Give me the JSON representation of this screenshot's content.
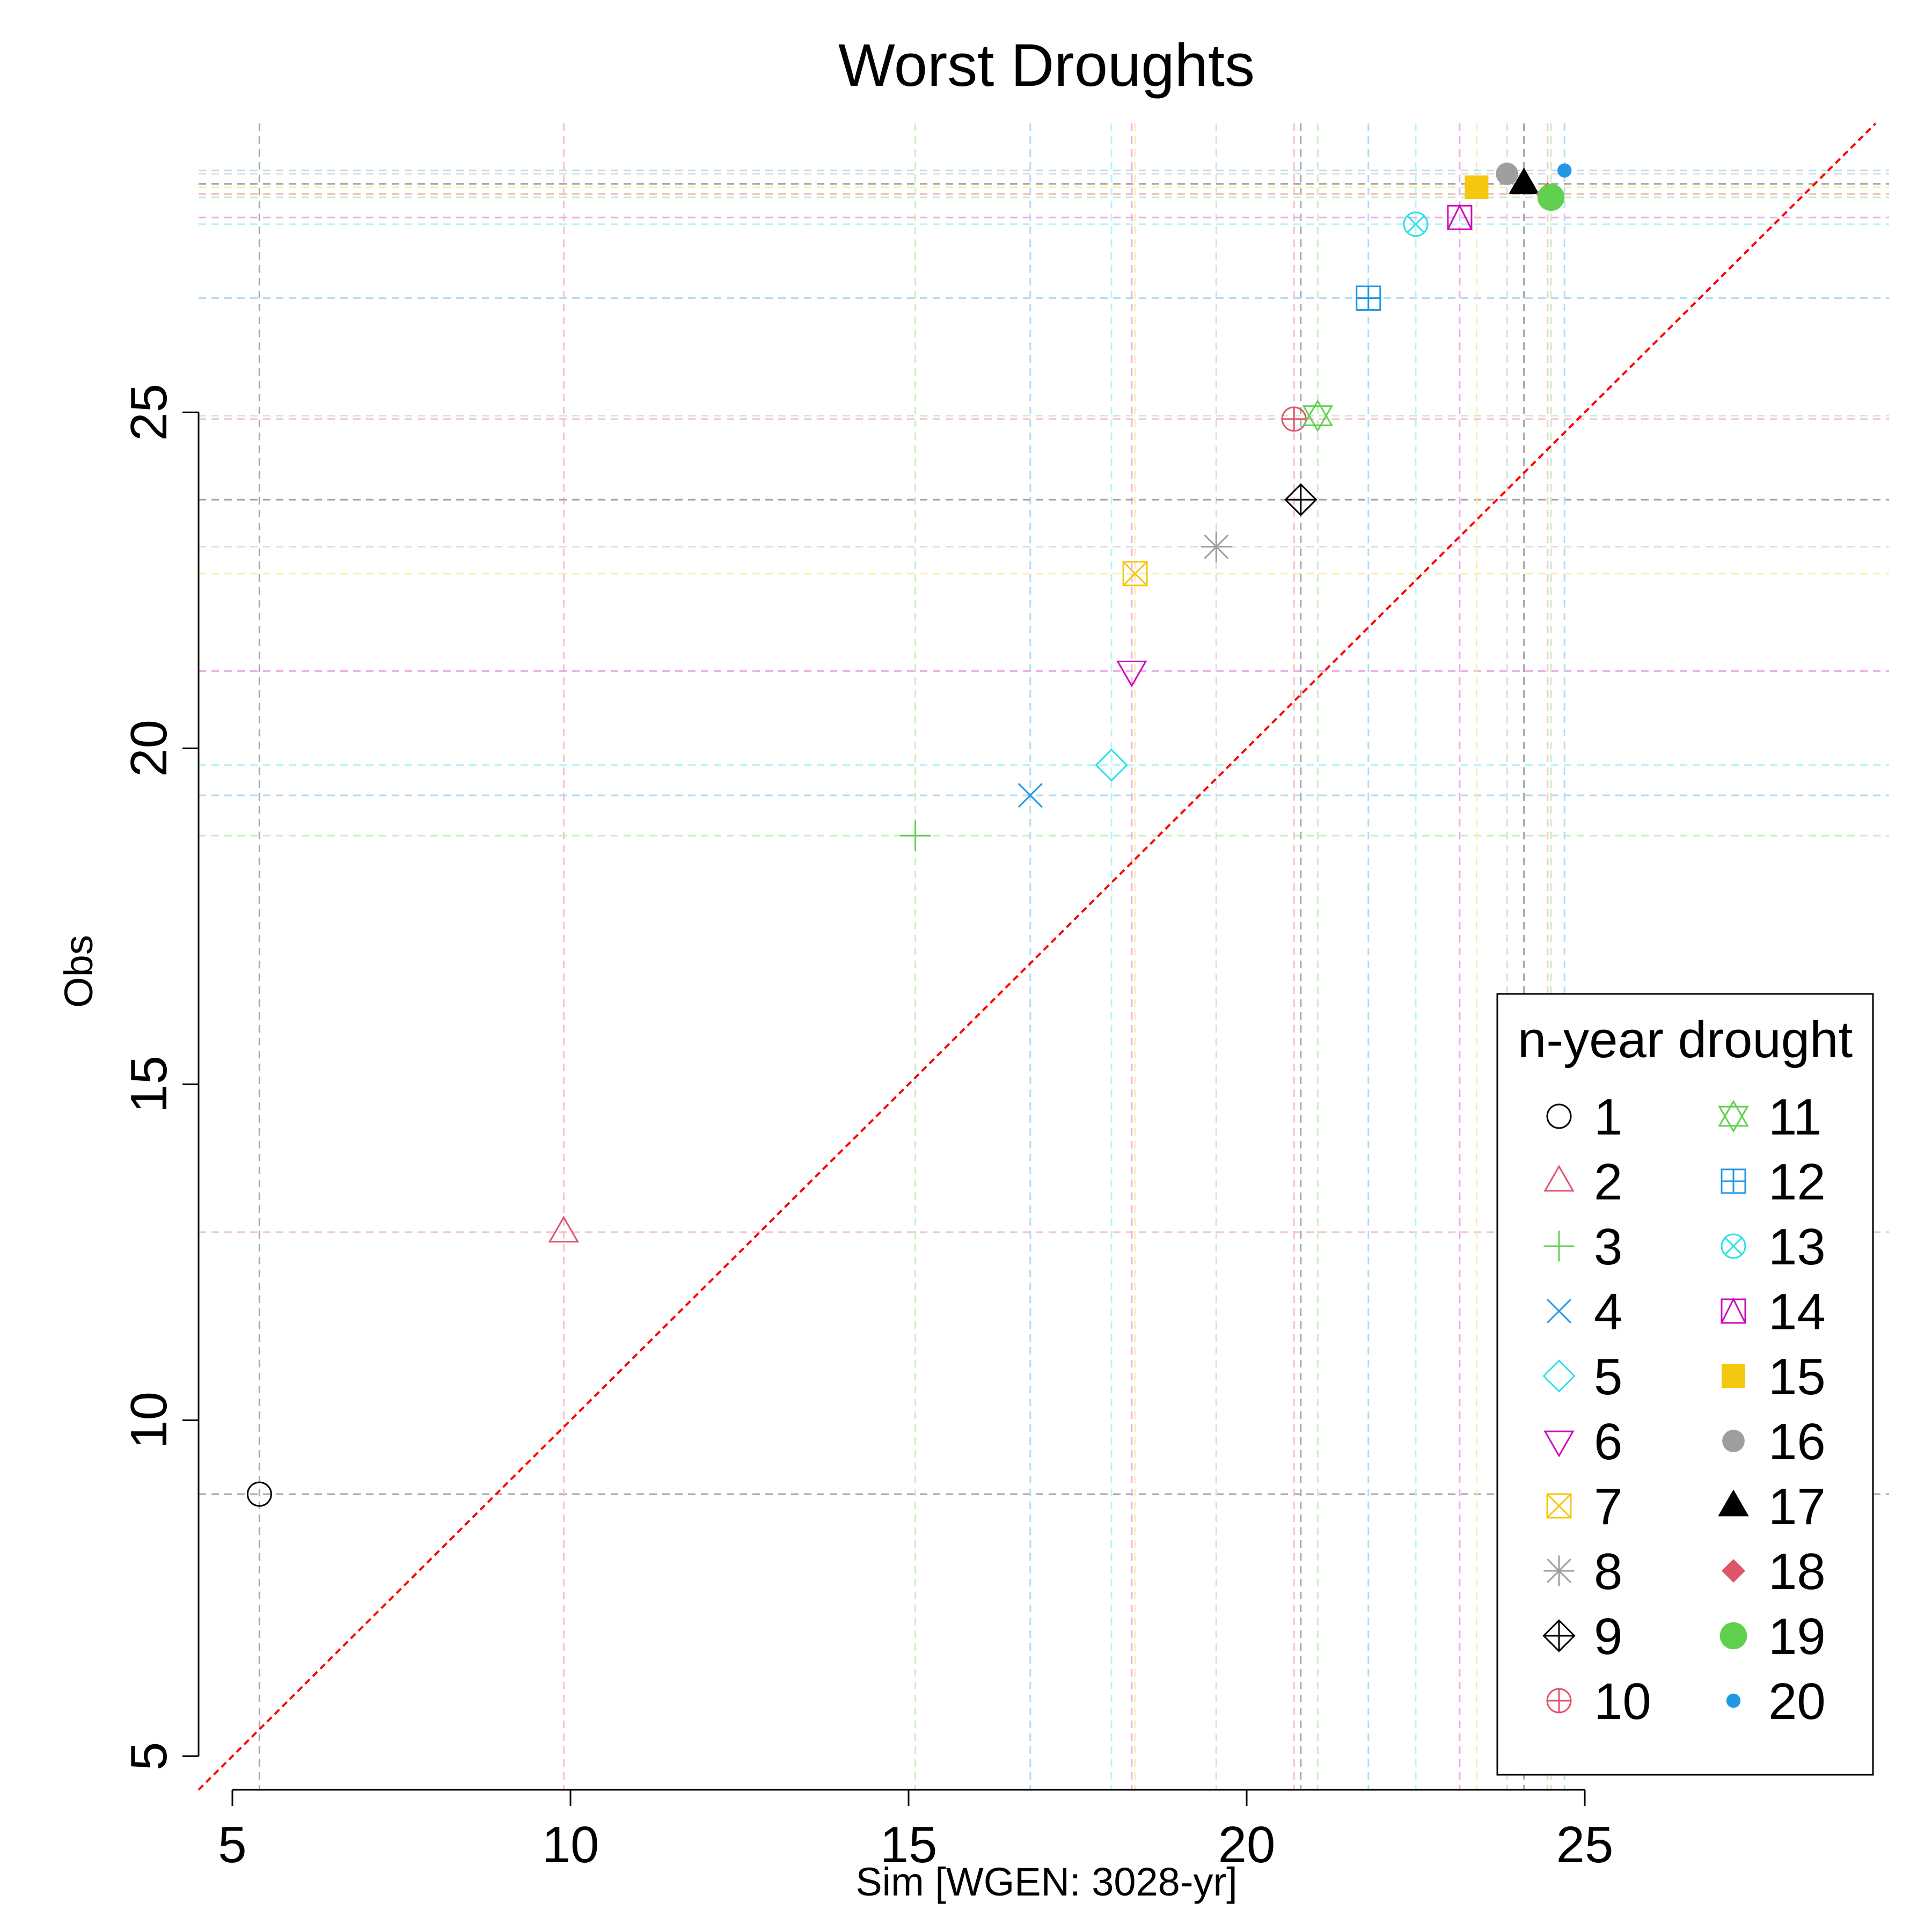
{
  "chart_data": {
    "type": "scatter",
    "title": "Worst Droughts",
    "xlabel": "Sim [WGEN: 3028-yr]",
    "ylabel": "Obs",
    "xlim": [
      4.5,
      29.5
    ],
    "ylim": [
      4.5,
      29.3
    ],
    "xticks": [
      5,
      10,
      15,
      20,
      25
    ],
    "yticks": [
      5,
      10,
      15,
      20,
      25
    ],
    "grid": "dashed reference lines at each point's x and y",
    "reference_line": {
      "type": "1:1",
      "color": "#ff0000",
      "style": "dashed"
    },
    "legend": {
      "title": "n-year drought",
      "placement": "bottom-right",
      "columns": 2
    },
    "series": [
      {
        "name": "1",
        "x": 5.4,
        "y": 8.9,
        "marker": "circle-open",
        "color": "#000000"
      },
      {
        "name": "2",
        "x": 9.9,
        "y": 12.8,
        "marker": "triangle-open",
        "color": "#DF536B"
      },
      {
        "name": "3",
        "x": 15.1,
        "y": 18.7,
        "marker": "plus",
        "color": "#61D04F"
      },
      {
        "name": "4",
        "x": 16.8,
        "y": 19.3,
        "marker": "cross",
        "color": "#2297E6"
      },
      {
        "name": "5",
        "x": 18.0,
        "y": 19.75,
        "marker": "diamond-open",
        "color": "#28E2E5"
      },
      {
        "name": "6",
        "x": 18.3,
        "y": 21.15,
        "marker": "triangle-down-open",
        "color": "#CD0BBC"
      },
      {
        "name": "7",
        "x": 18.35,
        "y": 22.6,
        "marker": "square-x",
        "color": "#F5C710"
      },
      {
        "name": "8",
        "x": 19.55,
        "y": 23.0,
        "marker": "asterisk",
        "color": "#9E9E9E"
      },
      {
        "name": "9",
        "x": 20.8,
        "y": 23.7,
        "marker": "diamond-plus",
        "color": "#000000"
      },
      {
        "name": "10",
        "x": 20.7,
        "y": 24.9,
        "marker": "circle-plus",
        "color": "#DF536B"
      },
      {
        "name": "11",
        "x": 21.05,
        "y": 24.95,
        "marker": "hexagram",
        "color": "#61D04F"
      },
      {
        "name": "12",
        "x": 21.8,
        "y": 26.7,
        "marker": "square-plus",
        "color": "#2297E6"
      },
      {
        "name": "13",
        "x": 22.5,
        "y": 27.8,
        "marker": "circle-x",
        "color": "#28E2E5"
      },
      {
        "name": "14",
        "x": 23.15,
        "y": 27.9,
        "marker": "square-triangle",
        "color": "#CD0BBC"
      },
      {
        "name": "15",
        "x": 23.4,
        "y": 28.35,
        "marker": "square-filled",
        "color": "#F5C710"
      },
      {
        "name": "16",
        "x": 23.85,
        "y": 28.55,
        "marker": "circle-filled",
        "color": "#9E9E9E"
      },
      {
        "name": "17",
        "x": 24.1,
        "y": 28.4,
        "marker": "triangle-filled",
        "color": "#000000"
      },
      {
        "name": "18",
        "x": 24.45,
        "y": 28.25,
        "marker": "diamond-filled",
        "color": "#DF536B"
      },
      {
        "name": "19",
        "x": 24.5,
        "y": 28.2,
        "marker": "circle-filled-lg",
        "color": "#61D04F"
      },
      {
        "name": "20",
        "x": 24.7,
        "y": 28.6,
        "marker": "dot",
        "color": "#2297E6"
      }
    ]
  }
}
